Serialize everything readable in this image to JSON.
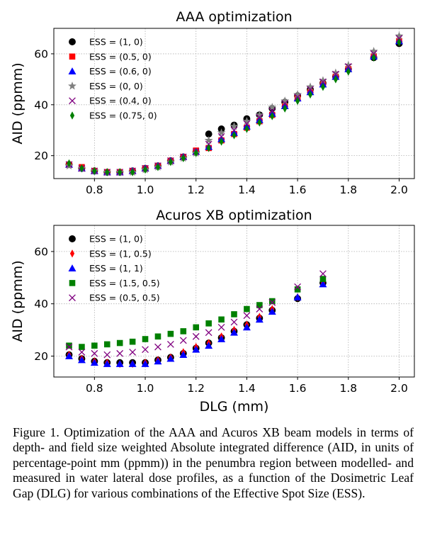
{
  "chart_data": [
    {
      "type": "scatter",
      "title": "AAA optimization",
      "xlabel": "",
      "ylabel": "AID (ppmm)",
      "xlim": [
        0.64,
        2.06
      ],
      "ylim": [
        11,
        70
      ],
      "xticks": [
        "0.8",
        "1.0",
        "1.2",
        "1.4",
        "1.6",
        "1.8",
        "2.0"
      ],
      "xtick_values": [
        0.8,
        1.0,
        1.2,
        1.4,
        1.6,
        1.8,
        2.0
      ],
      "yticks": [
        "20",
        "40",
        "60"
      ],
      "ytick_values": [
        20,
        40,
        60
      ],
      "grid": true,
      "legend": "upper-left",
      "series": [
        {
          "name": "ESS = (1, 0)",
          "marker": "circle",
          "color": "#000000",
          "x": [
            0.7,
            0.75,
            0.8,
            0.85,
            0.9,
            0.95,
            1.0,
            1.05,
            1.1,
            1.15,
            1.2,
            1.25,
            1.3,
            1.35,
            1.4,
            1.45,
            1.5,
            1.55,
            1.6,
            1.65,
            1.7,
            1.75,
            1.8,
            1.9,
            2.0
          ],
          "y": [
            16.5,
            15,
            14,
            13.5,
            13.5,
            14,
            15,
            16,
            18,
            19.5,
            21.5,
            28.5,
            30.5,
            32,
            34.5,
            36,
            38.5,
            41,
            43.5,
            46,
            48.5,
            51,
            54,
            58.5,
            64
          ]
        },
        {
          "name": "ESS = (0.5, 0)",
          "marker": "square",
          "color": "#ff0000",
          "x": [
            0.7,
            0.75,
            0.8,
            0.85,
            0.9,
            0.95,
            1.0,
            1.05,
            1.1,
            1.15,
            1.2,
            1.25,
            1.3,
            1.35,
            1.4,
            1.45,
            1.5,
            1.55,
            1.6,
            1.65,
            1.7,
            1.75,
            1.8,
            1.9,
            2.0
          ],
          "y": [
            16.5,
            15.5,
            14,
            13.5,
            13.5,
            14,
            15,
            16,
            18,
            19.5,
            22,
            23,
            26,
            28.5,
            31,
            33.5,
            36,
            39.5,
            42.5,
            45,
            48,
            51,
            54,
            59,
            65
          ]
        },
        {
          "name": "ESS = (0.6, 0)",
          "marker": "triangle",
          "color": "#0000ff",
          "x": [
            0.7,
            0.75,
            0.8,
            0.85,
            0.9,
            0.95,
            1.0,
            1.05,
            1.1,
            1.15,
            1.2,
            1.25,
            1.3,
            1.35,
            1.4,
            1.45,
            1.5,
            1.55,
            1.6,
            1.65,
            1.7,
            1.75,
            1.8,
            1.9,
            2.0
          ],
          "y": [
            16.5,
            15,
            14,
            13.5,
            13.5,
            14,
            15,
            16,
            18,
            19.5,
            21.5,
            23.5,
            26.5,
            29,
            31.5,
            34,
            36.5,
            39.5,
            42.5,
            45,
            48,
            51,
            54,
            59,
            65
          ]
        },
        {
          "name": "ESS = (0, 0)",
          "marker": "star",
          "color": "#808080",
          "x": [
            0.7,
            0.75,
            0.8,
            0.85,
            0.9,
            0.95,
            1.0,
            1.05,
            1.1,
            1.15,
            1.2,
            1.25,
            1.3,
            1.35,
            1.4,
            1.45,
            1.5,
            1.55,
            1.6,
            1.65,
            1.7,
            1.75,
            1.8,
            1.9,
            2.0
          ],
          "y": [
            16,
            15,
            14,
            13.5,
            13.5,
            13.5,
            14.5,
            15.5,
            17.5,
            19,
            21,
            26,
            29,
            31.5,
            33.5,
            36,
            39,
            41.5,
            44,
            47,
            49.5,
            52.5,
            55.5,
            61,
            67
          ]
        },
        {
          "name": "ESS = (0.4, 0)",
          "marker": "x",
          "color": "#800080",
          "x": [
            0.7,
            0.75,
            0.8,
            0.85,
            0.9,
            0.95,
            1.0,
            1.05,
            1.1,
            1.15,
            1.2,
            1.25,
            1.3,
            1.35,
            1.4,
            1.45,
            1.5,
            1.55,
            1.6,
            1.65,
            1.7,
            1.75,
            1.8,
            1.9,
            2.0
          ],
          "y": [
            16.5,
            15,
            14,
            13.5,
            13.5,
            14,
            15,
            16,
            18,
            19.5,
            21.5,
            24.5,
            27.5,
            30,
            32.5,
            35,
            37.5,
            40.5,
            43,
            46,
            49,
            52,
            55,
            60,
            66
          ]
        },
        {
          "name": "ESS = (0.75, 0)",
          "marker": "thin-diamond",
          "color": "#008000",
          "x": [
            0.7,
            0.75,
            0.8,
            0.85,
            0.9,
            0.95,
            1.0,
            1.05,
            1.1,
            1.15,
            1.2,
            1.25,
            1.3,
            1.35,
            1.4,
            1.45,
            1.5,
            1.55,
            1.6,
            1.65,
            1.7,
            1.75,
            1.8,
            1.9,
            2.0
          ],
          "y": [
            17,
            15,
            14,
            13.5,
            13.5,
            13.5,
            14.5,
            15.5,
            17.5,
            19,
            21,
            23,
            25.5,
            28,
            30.5,
            33,
            35.5,
            38.5,
            41.5,
            44,
            47,
            50,
            53,
            58.5,
            64.5
          ]
        }
      ]
    },
    {
      "type": "scatter",
      "title": "Acuros XB optimization",
      "xlabel": "DLG (mm)",
      "ylabel": "AID (ppmm)",
      "xlim": [
        0.64,
        2.06
      ],
      "ylim": [
        12,
        70
      ],
      "xticks": [
        "0.8",
        "1.0",
        "1.2",
        "1.4",
        "1.6",
        "1.8",
        "2.0"
      ],
      "xtick_values": [
        0.8,
        1.0,
        1.2,
        1.4,
        1.6,
        1.8,
        2.0
      ],
      "yticks": [
        "20",
        "40",
        "60"
      ],
      "ytick_values": [
        20,
        40,
        60
      ],
      "grid": true,
      "legend": "upper-left",
      "series": [
        {
          "name": "ESS = (1, 0)",
          "marker": "circle",
          "color": "#000000",
          "x": [
            0.7,
            0.75,
            0.8,
            0.85,
            0.9,
            0.95,
            1.0,
            1.05,
            1.1,
            1.15,
            1.2,
            1.25,
            1.3,
            1.35,
            1.4,
            1.45,
            1.5,
            1.6,
            1.7
          ],
          "y": [
            20.5,
            19,
            18,
            17.5,
            17.5,
            17.5,
            17.5,
            18.5,
            19.5,
            21,
            23,
            25,
            27,
            29.5,
            32,
            34.5,
            37.5,
            42,
            48
          ]
        },
        {
          "name": "ESS = (1, 0.5)",
          "marker": "thin-diamond",
          "color": "#ff0000",
          "x": [
            0.7,
            0.75,
            0.8,
            0.85,
            0.9,
            0.95,
            1.0,
            1.05,
            1.1,
            1.15,
            1.2,
            1.25,
            1.3,
            1.35,
            1.4,
            1.45,
            1.5,
            1.6,
            1.7
          ],
          "y": [
            20.5,
            19,
            18,
            17.5,
            17,
            17,
            17.5,
            18.5,
            19.5,
            21.5,
            23.5,
            25,
            27.5,
            30,
            32,
            35,
            38,
            42.5,
            48
          ]
        },
        {
          "name": "ESS = (1, 1)",
          "marker": "triangle",
          "color": "#0000ff",
          "x": [
            0.7,
            0.75,
            0.8,
            0.85,
            0.9,
            0.95,
            1.0,
            1.05,
            1.1,
            1.15,
            1.2,
            1.25,
            1.3,
            1.35,
            1.4,
            1.45,
            1.5,
            1.6,
            1.7
          ],
          "y": [
            20,
            18.5,
            17.5,
            17,
            17,
            17,
            17,
            18,
            19,
            20.5,
            22.5,
            24,
            26.5,
            29,
            31,
            34,
            37,
            42.5,
            47.5
          ]
        },
        {
          "name": "ESS = (1.5, 0.5)",
          "marker": "square",
          "color": "#008000",
          "x": [
            0.7,
            0.75,
            0.8,
            0.85,
            0.9,
            0.95,
            1.0,
            1.05,
            1.1,
            1.15,
            1.2,
            1.25,
            1.3,
            1.35,
            1.4,
            1.45,
            1.5,
            1.6,
            1.7
          ],
          "y": [
            24,
            23.5,
            24,
            24.5,
            25,
            25.5,
            26.5,
            27.5,
            28.5,
            29.5,
            31,
            32.5,
            34,
            36,
            38,
            39.5,
            41,
            45.5,
            49.5
          ]
        },
        {
          "name": "ESS = (0.5, 0.5)",
          "marker": "x",
          "color": "#800080",
          "x": [
            0.7,
            0.75,
            0.8,
            0.85,
            0.9,
            0.95,
            1.0,
            1.05,
            1.1,
            1.15,
            1.2,
            1.25,
            1.3,
            1.35,
            1.4,
            1.45,
            1.5,
            1.6,
            1.7
          ],
          "y": [
            23.5,
            21.5,
            21,
            20.5,
            21,
            21.5,
            22.5,
            23.5,
            24.5,
            26,
            27.5,
            29,
            31,
            33,
            35.5,
            38,
            40.5,
            46.5,
            51.5
          ]
        }
      ]
    }
  ],
  "caption": "Figure 1. Optimization of the AAA and Acuros XB beam models in terms of depth- and field size weighted Absolute integrated difference (AID, in units of percentage-point mm (ppmm)) in the penumbra region between modelled- and measured in water lateral dose profiles, as a function of the Dosimetric Leaf Gap (DLG) for various combinations of the Effective Spot Size (ESS)."
}
